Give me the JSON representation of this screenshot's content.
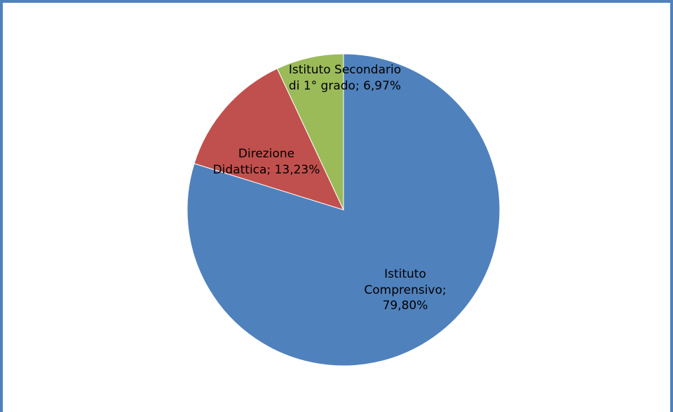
{
  "chart_data": {
    "type": "pie",
    "categories": [
      "Istituto Comprensivo",
      "Direzione Didattica",
      "Istituto Secondario di 1° grado"
    ],
    "values": [
      79.8,
      13.23,
      6.97
    ],
    "value_labels": [
      "79,80%",
      "13,23%",
      "6,97%"
    ],
    "label_separator": "; ",
    "colors": [
      "#4f81bd",
      "#c0504d",
      "#9bbb59"
    ]
  }
}
